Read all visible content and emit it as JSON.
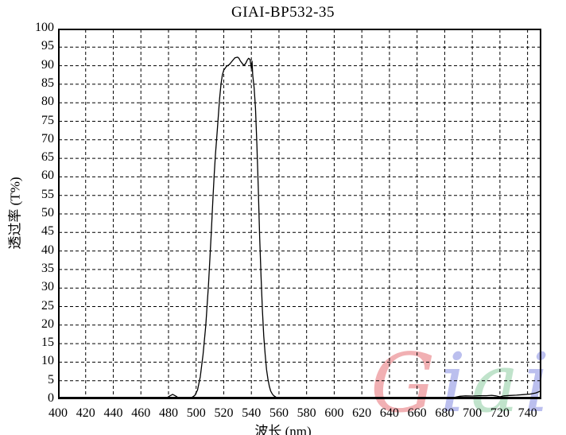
{
  "chart_data": {
    "type": "line",
    "title": "GIAI-BP532-35",
    "xlabel": "波长 (nm)",
    "ylabel": "透过率 (T%)",
    "xlim": [
      400,
      750
    ],
    "ylim": [
      0,
      100
    ],
    "xticks": [
      400,
      420,
      440,
      460,
      480,
      500,
      520,
      540,
      560,
      580,
      600,
      620,
      640,
      660,
      680,
      700,
      720,
      740
    ],
    "yticks": [
      0,
      5,
      10,
      15,
      20,
      25,
      30,
      35,
      40,
      45,
      50,
      55,
      60,
      65,
      70,
      75,
      80,
      85,
      90,
      95,
      100
    ],
    "grid": true,
    "grid_style": "dashed",
    "legend": "none",
    "background": "#ffffff",
    "line_color": "#000000",
    "series": [
      {
        "name": "GIAI-BP532-35 transmission",
        "points": [
          [
            400,
            0.2
          ],
          [
            410,
            0.2
          ],
          [
            420,
            0.2
          ],
          [
            430,
            0.2
          ],
          [
            440,
            0.2
          ],
          [
            450,
            0.2
          ],
          [
            460,
            0.2
          ],
          [
            470,
            0.2
          ],
          [
            476,
            0.2
          ],
          [
            479,
            0.4
          ],
          [
            481,
            0.9
          ],
          [
            483,
            1.3
          ],
          [
            485,
            0.9
          ],
          [
            487,
            0.4
          ],
          [
            490,
            0.2
          ],
          [
            494,
            0.2
          ],
          [
            497,
            0.5
          ],
          [
            499,
            1.0
          ],
          [
            501,
            2.5
          ],
          [
            503,
            6
          ],
          [
            505,
            12
          ],
          [
            507,
            20
          ],
          [
            509,
            31
          ],
          [
            511,
            45
          ],
          [
            512,
            53
          ],
          [
            513,
            60
          ],
          [
            514,
            66
          ],
          [
            515,
            71
          ],
          [
            516,
            76
          ],
          [
            517,
            81
          ],
          [
            518,
            85
          ],
          [
            519,
            87.5
          ],
          [
            520,
            88.8
          ],
          [
            522,
            89.8
          ],
          [
            524,
            90.3
          ],
          [
            526,
            91.2
          ],
          [
            528,
            92.1
          ],
          [
            530,
            92.3
          ],
          [
            531,
            92
          ],
          [
            532,
            91.3
          ],
          [
            534,
            90.3
          ],
          [
            535,
            90.2
          ],
          [
            536,
            90.7
          ],
          [
            537,
            91.5
          ],
          [
            538,
            92
          ],
          [
            539,
            91.7
          ],
          [
            540,
            89.3
          ],
          [
            540.5,
            91.2
          ],
          [
            541,
            87.5
          ],
          [
            542,
            84
          ],
          [
            543,
            78.5
          ],
          [
            544,
            69
          ],
          [
            545,
            57
          ],
          [
            546,
            44
          ],
          [
            547,
            33
          ],
          [
            548,
            24
          ],
          [
            549,
            17
          ],
          [
            550,
            12
          ],
          [
            551,
            8
          ],
          [
            552,
            5.5
          ],
          [
            553,
            3.5
          ],
          [
            554,
            2.2
          ],
          [
            555,
            1.5
          ],
          [
            556,
            1.0
          ],
          [
            558,
            0.5
          ],
          [
            560,
            0.3
          ],
          [
            563,
            0.2
          ],
          [
            570,
            0.15
          ],
          [
            578,
            0.15
          ],
          [
            585,
            0.2
          ],
          [
            590,
            0.35
          ],
          [
            596,
            0.4
          ],
          [
            602,
            0.35
          ],
          [
            606,
            0.3
          ],
          [
            610,
            0.4
          ],
          [
            615,
            0.45
          ],
          [
            619,
            0.5
          ],
          [
            623,
            0.35
          ],
          [
            628,
            0.2
          ],
          [
            635,
            0.15
          ],
          [
            645,
            0.15
          ],
          [
            655,
            0.15
          ],
          [
            665,
            0.15
          ],
          [
            675,
            0.2
          ],
          [
            682,
            0.25
          ],
          [
            687,
            0.5
          ],
          [
            691,
            0.8
          ],
          [
            695,
            0.9
          ],
          [
            700,
            0.85
          ],
          [
            705,
            0.95
          ],
          [
            710,
            0.95
          ],
          [
            714,
            1.05
          ],
          [
            717,
            0.9
          ],
          [
            720,
            0.65
          ],
          [
            723,
            0.9
          ],
          [
            727,
            1.0
          ],
          [
            732,
            1.1
          ],
          [
            737,
            1.25
          ],
          [
            742,
            1.4
          ],
          [
            746,
            1.7
          ],
          [
            750,
            2.3
          ]
        ]
      }
    ]
  },
  "watermark": {
    "text": "Giai",
    "letters": [
      {
        "char": "G",
        "color": "#f0a8ab"
      },
      {
        "char": "i",
        "color": "#b4b8ec"
      },
      {
        "char": "a",
        "color": "#b9e0c6"
      },
      {
        "char": "i",
        "color": "#b4b8ec"
      }
    ]
  }
}
